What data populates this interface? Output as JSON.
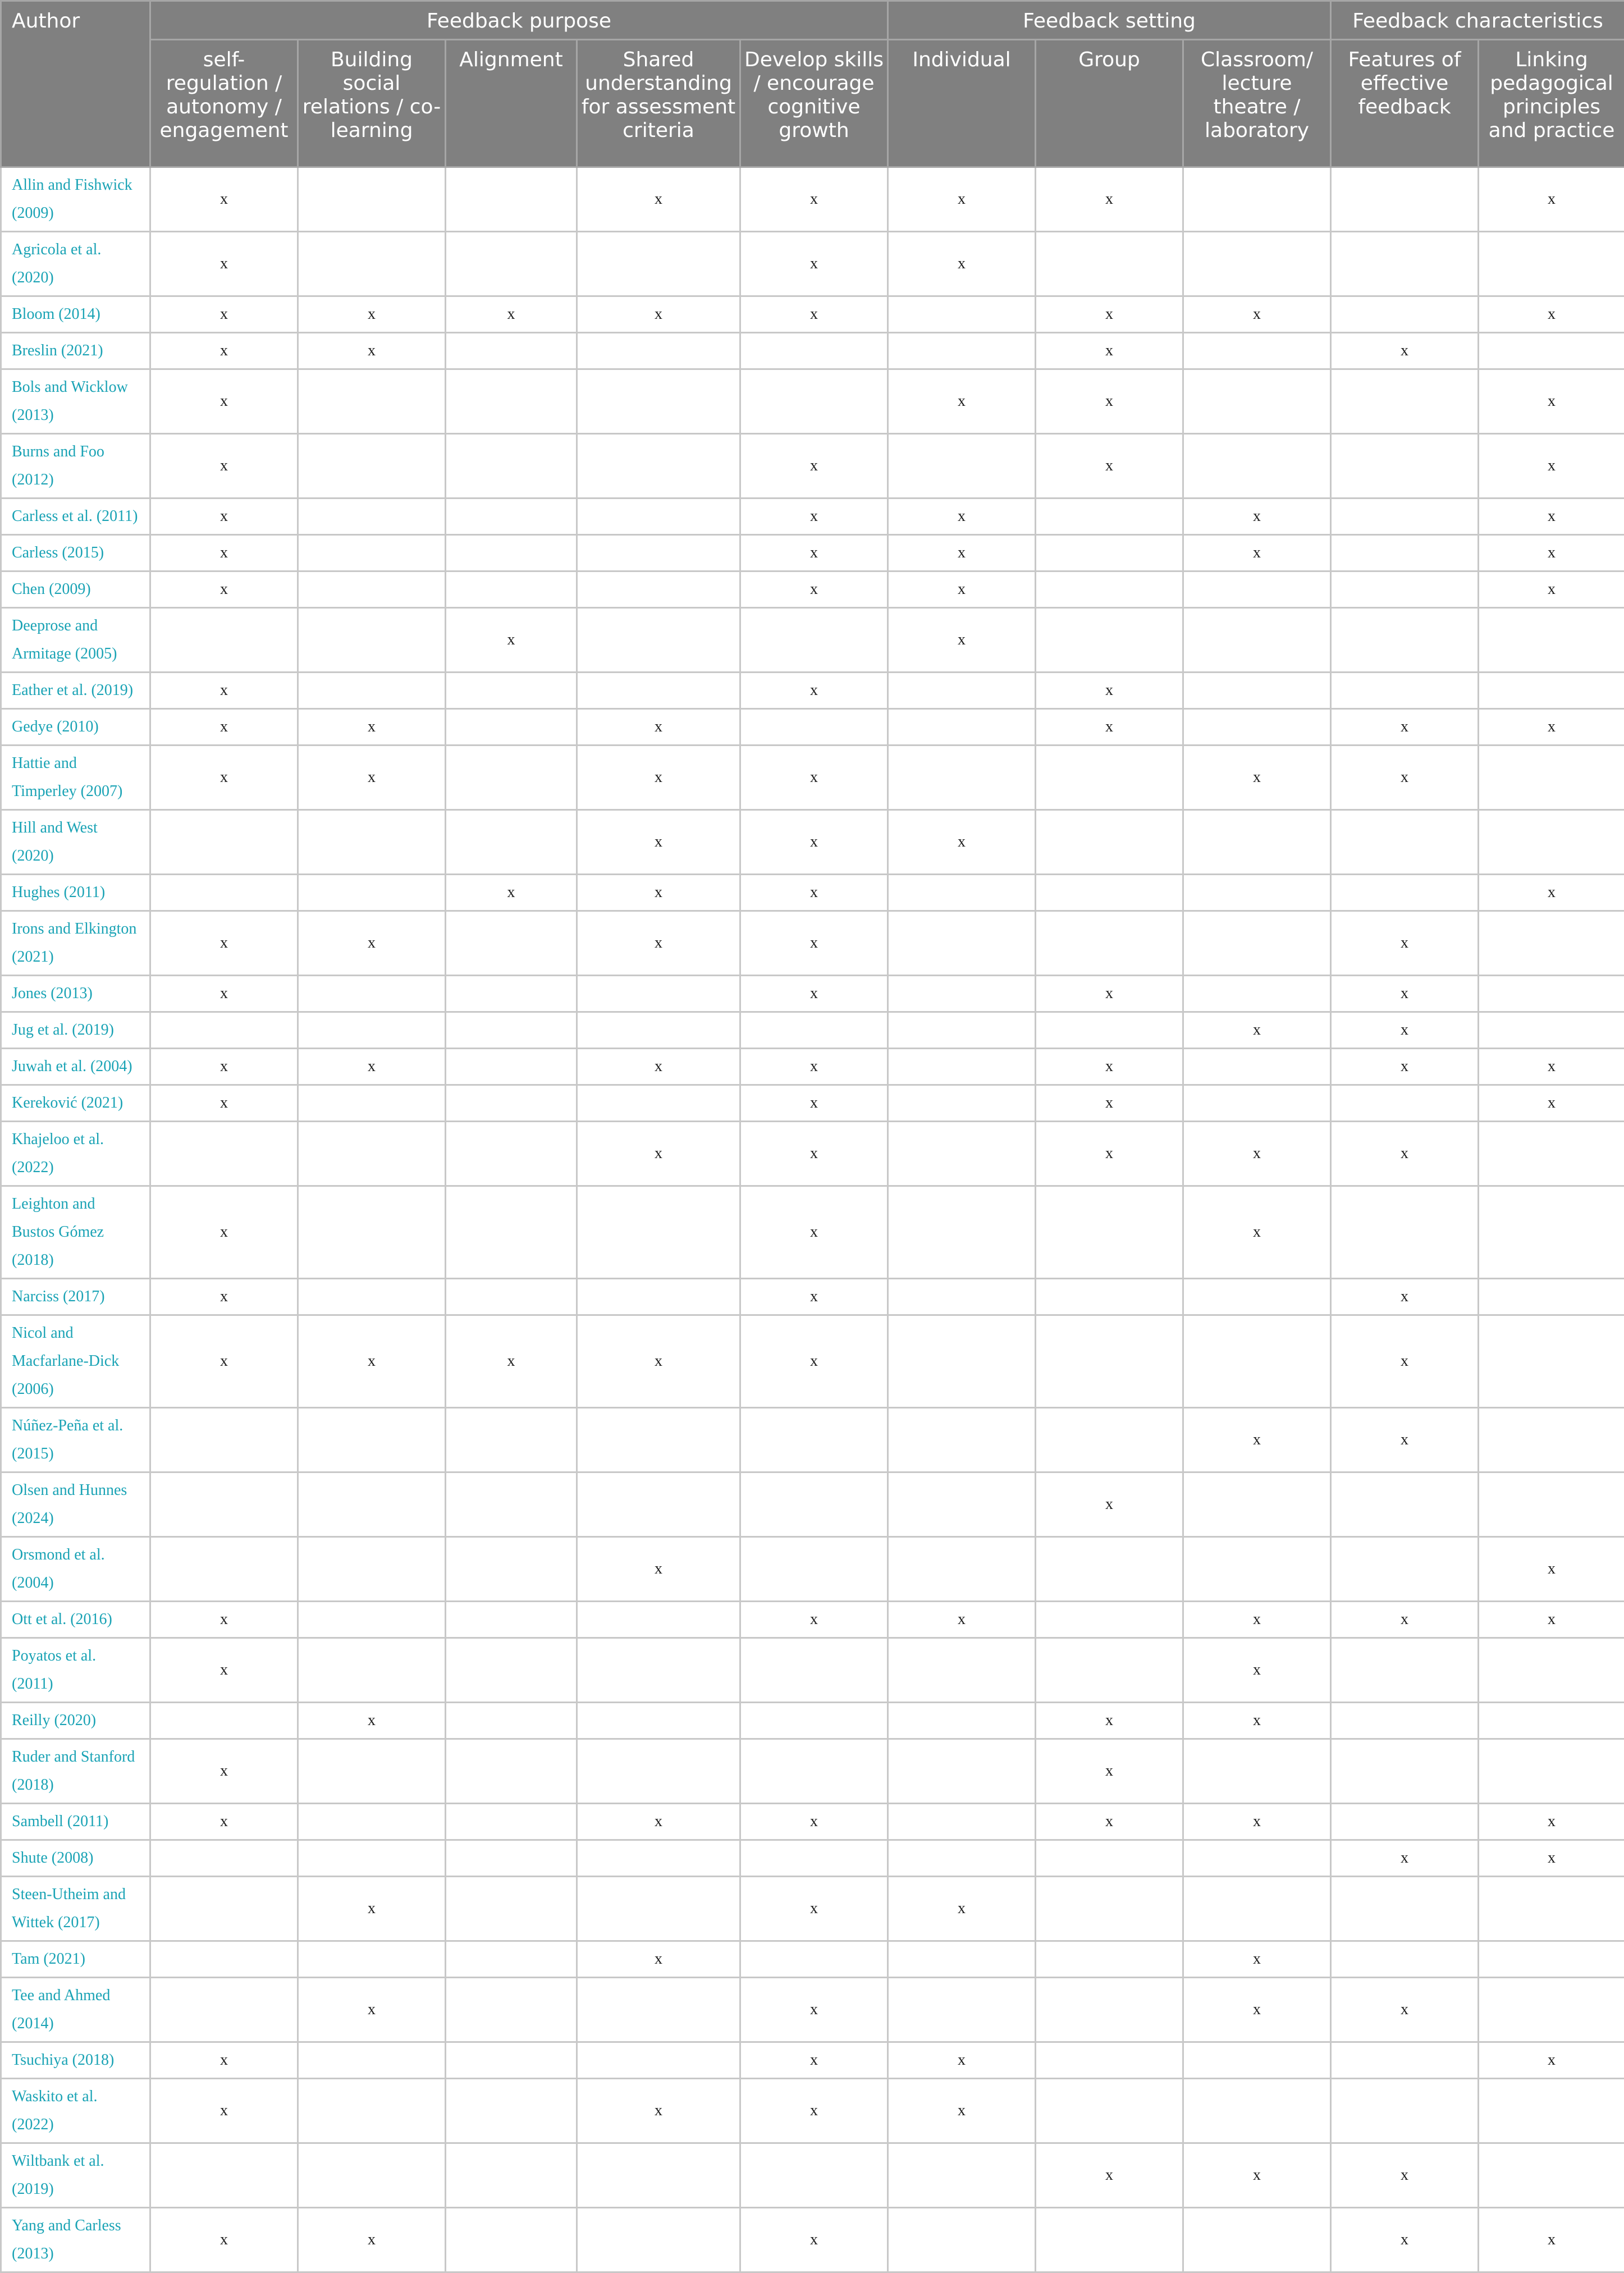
{
  "header": {
    "author": "Author",
    "groups": [
      "Feedback purpose",
      "Feedback setting",
      "Feedback characteristics"
    ],
    "columns": [
      "self-regulation / autonomy / engagement",
      "Building social relations / co-learning",
      "Alignment",
      "Shared understanding for assessment criteria",
      "Develop skills / encourage cognitive growth",
      "Individual",
      "Group",
      "Classroom/ lecture theatre / laboratory",
      "Features of effective feedback",
      "Linking pedagogical principles and practice"
    ]
  },
  "colors": {
    "header_bg": "#808080",
    "link": "#1aa3b5"
  },
  "rows": [
    {
      "author": "Allin and Fishwick (2009)",
      "marks": [
        "x",
        "",
        "",
        "x",
        "x",
        "x",
        "x",
        "",
        "",
        "x"
      ]
    },
    {
      "author": "Agricola et al. (2020)",
      "marks": [
        "x",
        "",
        "",
        "",
        "x",
        "x",
        "",
        "",
        "",
        ""
      ]
    },
    {
      "author": "Bloom (2014)",
      "marks": [
        "x",
        "x",
        "x",
        "x",
        "x",
        "",
        "x",
        "x",
        "",
        "x"
      ]
    },
    {
      "author": "Breslin (2021)",
      "marks": [
        "x",
        "x",
        "",
        "",
        "",
        "",
        "x",
        "",
        "x",
        ""
      ]
    },
    {
      "author": "Bols and Wicklow (2013)",
      "marks": [
        "x",
        "",
        "",
        "",
        "",
        "x",
        "x",
        "",
        "",
        "x"
      ]
    },
    {
      "author": "Burns and Foo (2012)",
      "marks": [
        "x",
        "",
        "",
        "",
        "x",
        "",
        "x",
        "",
        "",
        "x"
      ]
    },
    {
      "author": "Carless et al. (2011)",
      "marks": [
        "x",
        "",
        "",
        "",
        "x",
        "x",
        "",
        "x",
        "",
        "x"
      ]
    },
    {
      "author": "Carless (2015)",
      "marks": [
        "x",
        "",
        "",
        "",
        "x",
        "x",
        "",
        "x",
        "",
        "x"
      ]
    },
    {
      "author": "Chen (2009)",
      "marks": [
        "x",
        "",
        "",
        "",
        "x",
        "x",
        "",
        "",
        "",
        "x"
      ]
    },
    {
      "author": "Deeprose and Armitage (2005)",
      "marks": [
        "",
        "",
        "x",
        "",
        "",
        "x",
        "",
        "",
        "",
        ""
      ]
    },
    {
      "author": "Eather et al. (2019)",
      "marks": [
        "x",
        "",
        "",
        "",
        "x",
        "",
        "x",
        "",
        "",
        ""
      ]
    },
    {
      "author": "Gedye (2010)",
      "marks": [
        "x",
        "x",
        "",
        "x",
        "",
        "",
        "x",
        "",
        "x",
        "x"
      ]
    },
    {
      "author": "Hattie and Timperley (2007)",
      "marks": [
        "x",
        "x",
        "",
        "x",
        "x",
        "",
        "",
        "x",
        "x",
        ""
      ]
    },
    {
      "author": "Hill and West (2020)",
      "marks": [
        "",
        "",
        "",
        "x",
        "x",
        "x",
        "",
        "",
        "",
        ""
      ]
    },
    {
      "author": "Hughes (2011)",
      "marks": [
        "",
        "",
        "x",
        "x",
        "x",
        "",
        "",
        "",
        "",
        "x"
      ]
    },
    {
      "author": "Irons and Elkington (2021)",
      "marks": [
        "x",
        "x",
        "",
        "x",
        "x",
        "",
        "",
        "",
        "x",
        ""
      ]
    },
    {
      "author": "Jones (2013)",
      "marks": [
        "x",
        "",
        "",
        "",
        "x",
        "",
        "x",
        "",
        "x",
        ""
      ]
    },
    {
      "author": "Jug et al. (2019)",
      "marks": [
        "",
        "",
        "",
        "",
        "",
        "",
        "",
        "x",
        "x",
        ""
      ]
    },
    {
      "author": "Juwah et al. (2004)",
      "marks": [
        "x",
        "x",
        "",
        "x",
        "x",
        "",
        "x",
        "",
        "x",
        "x"
      ]
    },
    {
      "author": "Kereković (2021)",
      "marks": [
        "x",
        "",
        "",
        "",
        "x",
        "",
        "x",
        "",
        "",
        "x"
      ]
    },
    {
      "author": "Khajeloo et al. (2022)",
      "marks": [
        "",
        "",
        "",
        "x",
        "x",
        "",
        "x",
        "x",
        "x",
        ""
      ]
    },
    {
      "author": "Leighton and Bustos Gómez (2018)",
      "marks": [
        "x",
        "",
        "",
        "",
        "x",
        "",
        "",
        "x",
        "",
        ""
      ]
    },
    {
      "author": "Narciss (2017)",
      "marks": [
        "x",
        "",
        "",
        "",
        "x",
        "",
        "",
        "",
        "x",
        ""
      ]
    },
    {
      "author": "Nicol and Macfarlane-Dick (2006)",
      "marks": [
        "x",
        "x",
        "x",
        "x",
        "x",
        "",
        "",
        "",
        "x",
        ""
      ]
    },
    {
      "author": "Núñez-Peña et al. (2015)",
      "marks": [
        "",
        "",
        "",
        "",
        "",
        "",
        "",
        "x",
        "x",
        ""
      ]
    },
    {
      "author": "Olsen and Hunnes (2024)",
      "marks": [
        "",
        "",
        "",
        "",
        "",
        "",
        "x",
        "",
        "",
        ""
      ]
    },
    {
      "author": "Orsmond et al. (2004)",
      "marks": [
        "",
        "",
        "",
        "x",
        "",
        "",
        "",
        "",
        "",
        "x"
      ]
    },
    {
      "author": "Ott et al. (2016)",
      "marks": [
        "x",
        "",
        "",
        "",
        "x",
        "x",
        "",
        "x",
        "x",
        "x"
      ]
    },
    {
      "author": "Poyatos et al. (2011)",
      "marks": [
        "x",
        "",
        "",
        "",
        "",
        "",
        "",
        "x",
        "",
        ""
      ]
    },
    {
      "author": "Reilly (2020)",
      "marks": [
        "",
        "x",
        "",
        "",
        "",
        "",
        "x",
        "x",
        "",
        ""
      ]
    },
    {
      "author": "Ruder and Stanford (2018)",
      "marks": [
        "x",
        "",
        "",
        "",
        "",
        "",
        "x",
        "",
        "",
        ""
      ]
    },
    {
      "author": "Sambell (2011)",
      "marks": [
        "x",
        "",
        "",
        "x",
        "x",
        "",
        "x",
        "x",
        "",
        "x"
      ]
    },
    {
      "author": "Shute (2008)",
      "marks": [
        "",
        "",
        "",
        "",
        "",
        "",
        "",
        "",
        "x",
        "x"
      ]
    },
    {
      "author": "Steen-Utheim and Wittek (2017)",
      "marks": [
        "",
        "x",
        "",
        "",
        "x",
        "x",
        "",
        "",
        "",
        ""
      ]
    },
    {
      "author": "Tam (2021)",
      "marks": [
        "",
        "",
        "",
        "x",
        "",
        "",
        "",
        "x",
        "",
        ""
      ]
    },
    {
      "author": "Tee and Ahmed (2014)",
      "marks": [
        "",
        "x",
        "",
        "",
        "x",
        "",
        "",
        "x",
        "x",
        ""
      ]
    },
    {
      "author": "Tsuchiya (2018)",
      "marks": [
        "x",
        "",
        "",
        "",
        "x",
        "x",
        "",
        "",
        "",
        "x"
      ]
    },
    {
      "author": "Waskito et al. (2022)",
      "marks": [
        "x",
        "",
        "",
        "x",
        "x",
        "x",
        "",
        "",
        "",
        ""
      ]
    },
    {
      "author": "Wiltbank et al. (2019)",
      "marks": [
        "",
        "",
        "",
        "",
        "",
        "",
        "x",
        "x",
        "x",
        ""
      ]
    },
    {
      "author": "Yang and Carless (2013)",
      "marks": [
        "x",
        "x",
        "",
        "",
        "x",
        "",
        "",
        "",
        "x",
        "x"
      ]
    }
  ]
}
